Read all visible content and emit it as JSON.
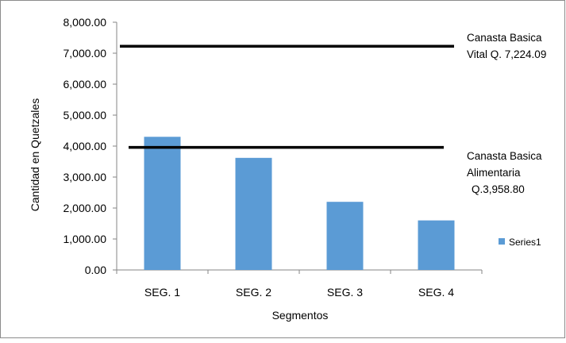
{
  "chart_data": {
    "type": "bar",
    "title": "",
    "xlabel": "Segmentos",
    "ylabel": "Cantidad en Quetzales",
    "categories": [
      "SEG. 1",
      "SEG. 2",
      "SEG. 3",
      "SEG. 4"
    ],
    "series": [
      {
        "name": "Series1",
        "values": [
          4300,
          3620,
          2200,
          1600
        ],
        "color": "#5b9bd5"
      }
    ],
    "ylim": [
      0,
      8000
    ],
    "yticks": [
      "0.00",
      "1,000.00",
      "2,000.00",
      "3,000.00",
      "4,000.00",
      "5,000.00",
      "6,000.00",
      "7,000.00",
      "8,000.00"
    ],
    "grid": false,
    "legend_position": "right",
    "reference_lines": [
      {
        "value": 7224.09,
        "label_lines": [
          "Canasta Basica",
          "Vital Q. 7,224.09"
        ],
        "color": "#000000"
      },
      {
        "value": 3958.8,
        "label_lines": [
          "Canasta Basica",
          "Alimentaria",
          "Q.3,958.80"
        ],
        "color": "#000000"
      }
    ]
  }
}
